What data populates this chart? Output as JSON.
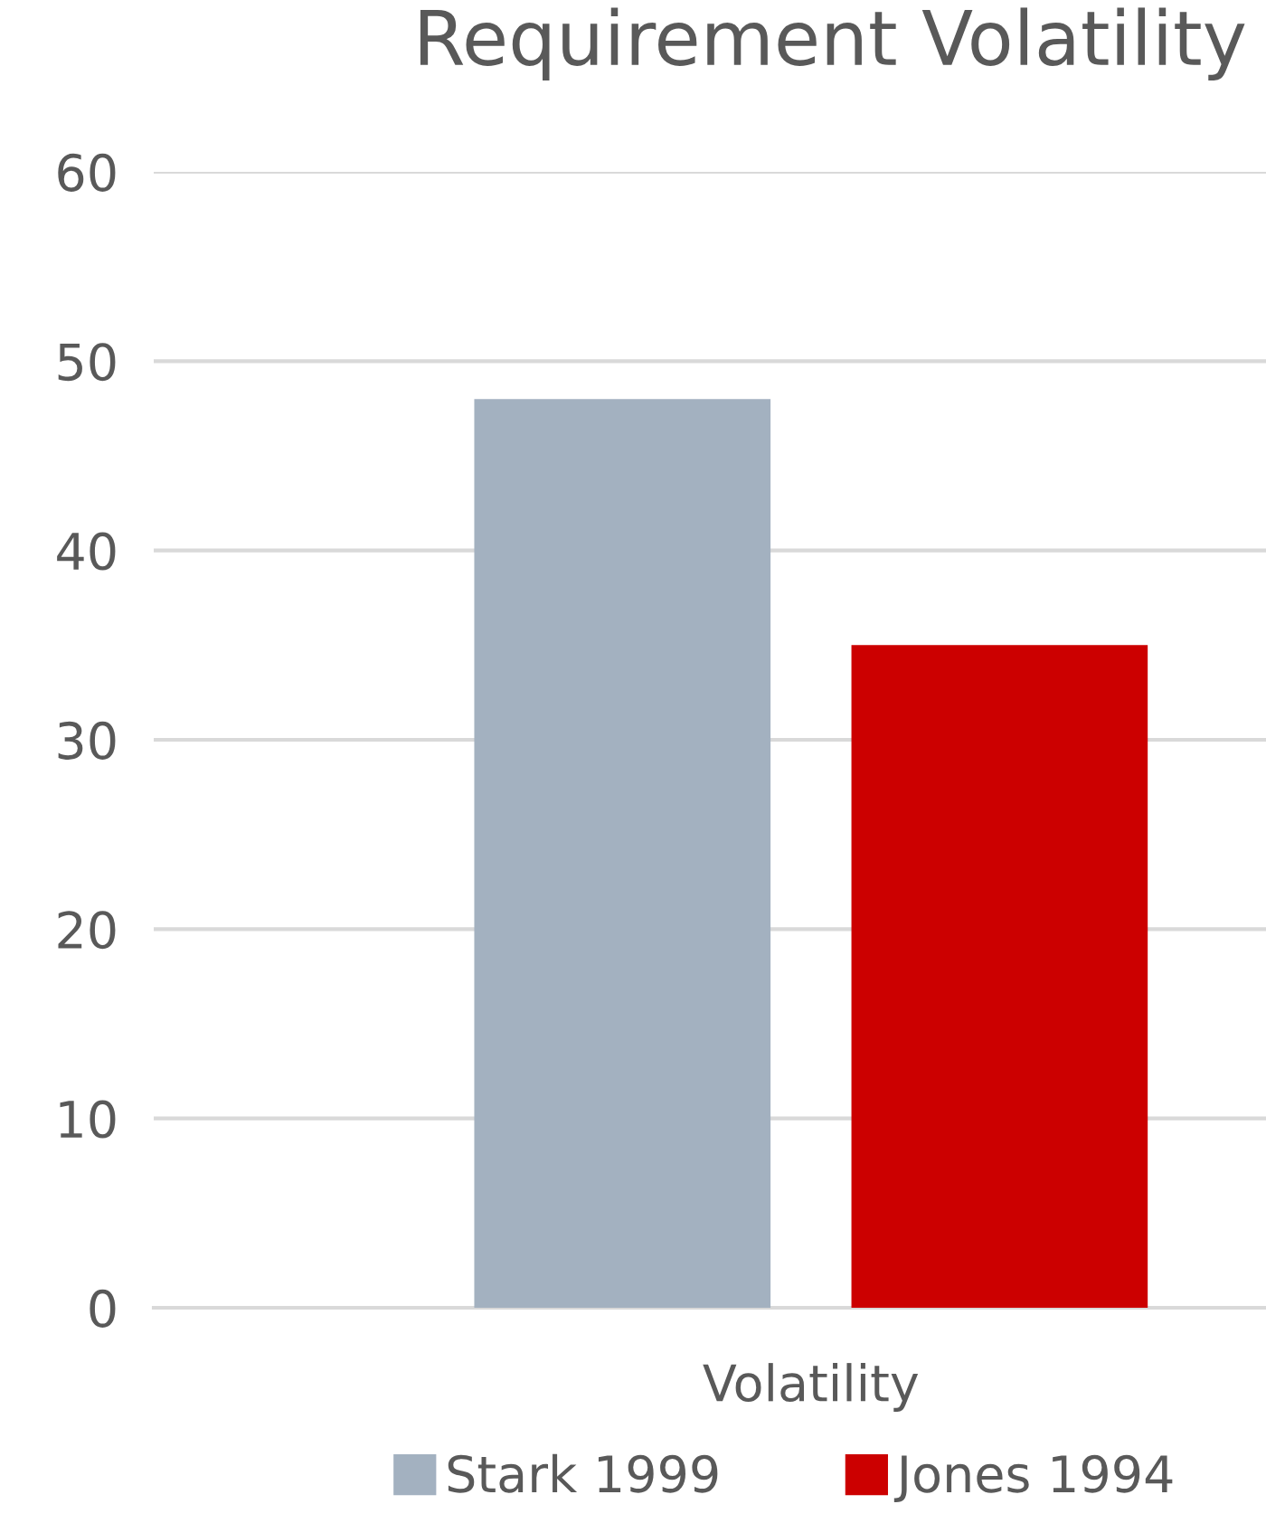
{
  "chart_data": {
    "type": "bar",
    "title": "Requirement Volatility",
    "categories": [
      "Volatility"
    ],
    "series": [
      {
        "name": "Stark 1999",
        "color": "#a3b1c0",
        "values": [
          48
        ]
      },
      {
        "name": "Jones 1994",
        "color": "#cc0000",
        "values": [
          35
        ]
      }
    ],
    "ylim": [
      0,
      60
    ],
    "yticks": [
      0,
      10,
      20,
      30,
      40,
      50,
      60
    ],
    "grid": "y",
    "legend": "bottom"
  }
}
